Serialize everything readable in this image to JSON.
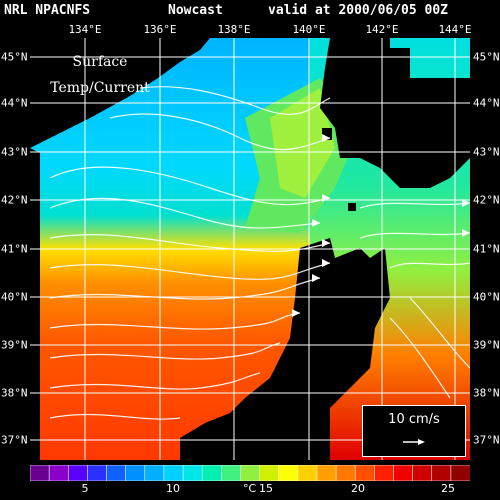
{
  "header": {
    "source": "NRL NPACNFS",
    "product": "Nowcast",
    "valid": "valid at 2000/06/05 00Z"
  },
  "overlay": {
    "line1": "Surface",
    "line2": "Temp/Current"
  },
  "longitude_labels": [
    "134°E",
    "136°E",
    "138°E",
    "140°E",
    "142°E",
    "144°E"
  ],
  "latitude_labels": [
    "45°N",
    "44°N",
    "43°N",
    "42°N",
    "41°N",
    "40°N",
    "39°N",
    "38°N",
    "37°N"
  ],
  "scale": {
    "label": "10 cm/s"
  },
  "colorbar": {
    "ticks": [
      "5",
      "10",
      "15",
      "20",
      "25"
    ],
    "unit": "°C",
    "colors": [
      "#6a0090",
      "#8a00c8",
      "#5a00ff",
      "#2a30ff",
      "#1060ff",
      "#0090ff",
      "#00b0ff",
      "#00d0ff",
      "#00e6e6",
      "#00f0b0",
      "#40f080",
      "#90f040",
      "#d0f000",
      "#ffff00",
      "#ffd000",
      "#ffa000",
      "#ff7800",
      "#ff5000",
      "#ff2000",
      "#f00000",
      "#d00000",
      "#b00000",
      "#900000"
    ]
  }
}
